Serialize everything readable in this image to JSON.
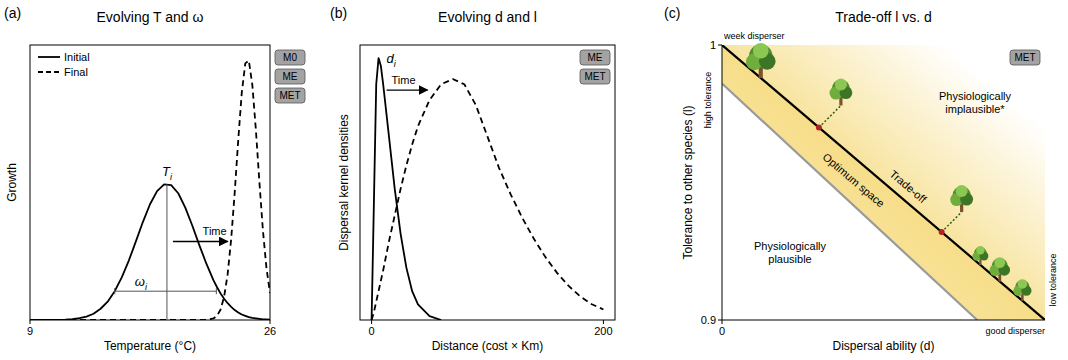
{
  "chart_data": [
    {
      "type": "line",
      "panel_label": "(a)",
      "title": "Evolving T and ω",
      "x_label": "Temperature (°C)",
      "y_label": "Growth",
      "xlim": [
        9,
        26
      ],
      "xticks": [
        9,
        26
      ],
      "ylim": [
        0,
        1.05
      ],
      "tick_labels": "x",
      "legend": "top-left",
      "models": [
        "M0",
        "ME",
        "MET"
      ],
      "x": [
        9,
        9.5,
        10,
        10.5,
        11,
        11.5,
        12,
        12.5,
        13,
        13.5,
        14,
        14.5,
        15,
        15.5,
        16,
        16.5,
        17,
        17.5,
        18,
        18.5,
        19,
        19.5,
        20,
        20.5,
        21,
        21.5,
        22,
        22.25,
        22.5,
        22.75,
        23,
        23.25,
        23.5,
        23.75,
        24,
        24.25,
        24.5,
        24.75,
        25,
        25.25,
        25.5,
        25.75,
        26
      ],
      "series": [
        {
          "name": "Initial",
          "color": "#000000",
          "line_style": "solid",
          "values": [
            0,
            0,
            0,
            0,
            0,
            0.001,
            0.003,
            0.007,
            0.013,
            0.024,
            0.043,
            0.07,
            0.11,
            0.163,
            0.227,
            0.3,
            0.375,
            0.442,
            0.492,
            0.518,
            0.515,
            0.484,
            0.429,
            0.36,
            0.285,
            0.214,
            0.151,
            0.125,
            0.101,
            0.081,
            0.064,
            0.05,
            0.038,
            0.029,
            0.021,
            0.016,
            0.011,
            0.008,
            0.006,
            0.004,
            0.002,
            0.002,
            0.001
          ]
        },
        {
          "name": "Final",
          "color": "#000000",
          "line_style": "dashed",
          "values": [
            0,
            0,
            0,
            0,
            0,
            0,
            0,
            0,
            0,
            0,
            0,
            0,
            0,
            0,
            0,
            0,
            0,
            0,
            0,
            0,
            0,
            0,
            0,
            0,
            0,
            0,
            0.006,
            0.016,
            0.04,
            0.089,
            0.175,
            0.309,
            0.487,
            0.687,
            0.867,
            0.98,
            0.991,
            0.897,
            0.726,
            0.526,
            0.341,
            0.198,
            0.103
          ]
        }
      ],
      "annotations": [
        {
          "text": "T",
          "subscript": "i",
          "x": 18.7
        },
        {
          "text": "ω",
          "subscript": "i",
          "x": [
            15,
            22.2
          ],
          "y": 0.11
        },
        {
          "text": "Time"
        }
      ]
    },
    {
      "type": "line",
      "panel_label": "(b)",
      "title": "Evolving d and l",
      "x_label": "Distance (cost × Km)",
      "y_label": "Dispersal kernel densities",
      "xlim": [
        -10,
        210
      ],
      "xticks": [
        0,
        200
      ],
      "ylim": [
        0,
        1.05
      ],
      "tick_labels": "x",
      "models": [
        "ME",
        "MET"
      ],
      "x": [
        0,
        2,
        4,
        6,
        8,
        10,
        15,
        20,
        25,
        30,
        35,
        40,
        50,
        60,
        70,
        80,
        90,
        100,
        110,
        120,
        130,
        140,
        150,
        160,
        170,
        180,
        190,
        200
      ],
      "series": [
        {
          "color": "#000000",
          "line_style": "solid",
          "values": [
            0,
            0.45,
            0.9,
            1,
            0.97,
            0.9,
            0.7,
            0.5,
            0.33,
            0.2,
            0.11,
            0.06,
            0.015,
            0,
            null,
            null,
            null,
            null,
            null,
            null,
            null,
            null,
            null,
            null,
            null,
            null,
            null,
            null
          ]
        },
        {
          "color": "#000000",
          "line_style": "dashed",
          "values": [
            0,
            0.03,
            0.07,
            0.11,
            0.15,
            0.19,
            0.3,
            0.4,
            0.5,
            0.59,
            0.67,
            0.74,
            0.84,
            0.9,
            0.92,
            0.9,
            0.82,
            0.7,
            0.58,
            0.48,
            0.39,
            0.31,
            0.24,
            0.18,
            0.13,
            0.09,
            0.06,
            0.04
          ]
        }
      ],
      "annotations": [
        {
          "text": "d",
          "subscript": "i"
        },
        {
          "text": "Time"
        }
      ]
    },
    {
      "type": "line",
      "panel_label": "(c)",
      "title": "Trade-off l vs. d",
      "x_label": "Dispersal ability (d)",
      "y_label": "Tolerance to other species (l)",
      "xlim": [
        0,
        1
      ],
      "xticks": [
        0
      ],
      "ylim": [
        0.9,
        1
      ],
      "yticks": [
        0.9,
        1
      ],
      "models": [
        "MET"
      ],
      "series": [
        {
          "name": "Trade-off",
          "color": "#000000",
          "line_style": "solid",
          "x": [
            0,
            1
          ],
          "values": [
            1,
            0.9
          ]
        },
        {
          "color": "#9a9a9a",
          "line_style": "solid",
          "x": [
            0,
            0.79
          ],
          "values": [
            0.986,
            0.9
          ]
        }
      ],
      "regions": {
        "between": "Optimum space",
        "above": "Physiologically implausible*",
        "below": "Physiologically plausible"
      },
      "y_ends": {
        "top": "high tolerance",
        "bottom": "low tolerance"
      },
      "x_ends": {
        "left": "week disperser",
        "right": "good disperser"
      }
    }
  ]
}
